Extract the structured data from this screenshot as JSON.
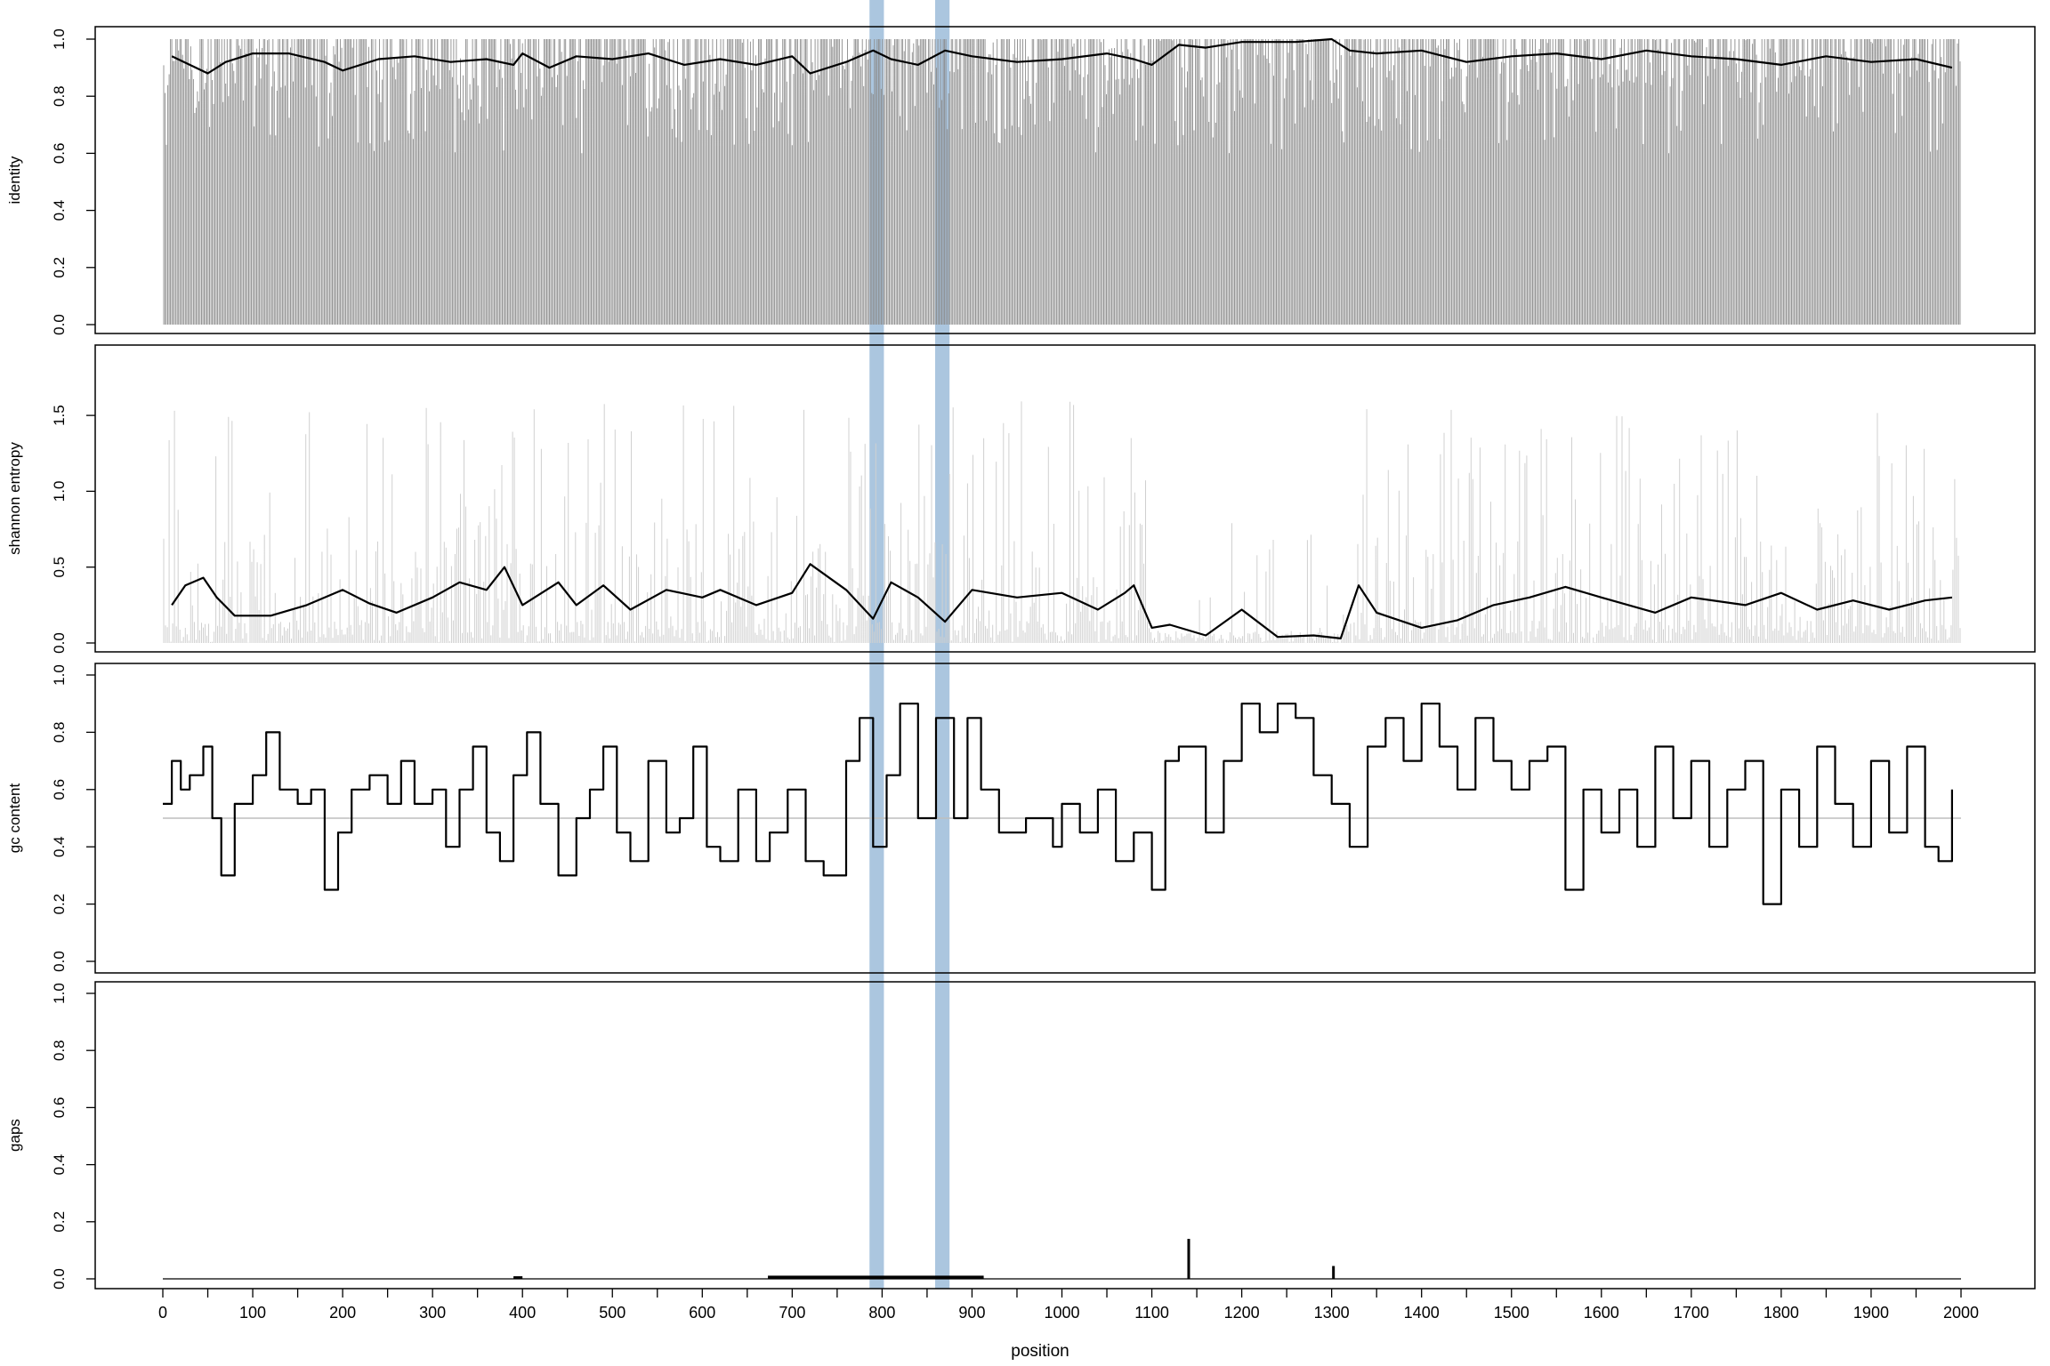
{
  "chart_data": {
    "type": "line",
    "xlabel": "position",
    "xlim": [
      0,
      2000
    ],
    "x_ticks": [
      0,
      100,
      200,
      300,
      400,
      500,
      600,
      700,
      800,
      900,
      1000,
      1100,
      1200,
      1300,
      1400,
      1500,
      1600,
      1700,
      1800,
      1900,
      2000
    ],
    "x_tick_labels": [
      "0",
      "100",
      "200",
      "300",
      "400",
      "500",
      "600",
      "700",
      "800",
      "900",
      "1000",
      "1100",
      "1200",
      "1300",
      "1400",
      "1500",
      "1600",
      "1700",
      "1800",
      "1900",
      "2000"
    ],
    "highlight_bands": [
      {
        "from": 786,
        "to": 802
      },
      {
        "from": 859,
        "to": 875
      }
    ],
    "colors": {
      "highlight": "#a6c3dd",
      "identity_bars": "#8c8c8c",
      "entropy_bars": "#d0d0d0",
      "smoothed_line": "#000000",
      "reference_line": "#bdbdbd"
    },
    "panels": [
      {
        "id": "identity",
        "ylabel": "identity",
        "ylim": [
          0,
          1
        ],
        "y_ticks": [
          0.0,
          0.2,
          0.4,
          0.6,
          0.8,
          1.0
        ],
        "y_tick_labels": [
          "0.0",
          "0.2",
          "0.4",
          "0.6",
          "0.8",
          "1.0"
        ],
        "raw_bars": "per-position identity (0–1)",
        "smoothed": {
          "x": [
            10,
            30,
            50,
            70,
            100,
            140,
            180,
            200,
            240,
            280,
            320,
            360,
            390,
            400,
            430,
            460,
            500,
            540,
            580,
            620,
            660,
            700,
            720,
            760,
            790,
            810,
            840,
            870,
            900,
            950,
            1000,
            1050,
            1080,
            1100,
            1130,
            1160,
            1200,
            1260,
            1300,
            1320,
            1350,
            1400,
            1450,
            1500,
            1550,
            1600,
            1650,
            1700,
            1750,
            1800,
            1850,
            1900,
            1950,
            1990
          ],
          "y": [
            0.94,
            0.91,
            0.88,
            0.92,
            0.95,
            0.95,
            0.92,
            0.89,
            0.93,
            0.94,
            0.92,
            0.93,
            0.91,
            0.95,
            0.9,
            0.94,
            0.93,
            0.95,
            0.91,
            0.93,
            0.91,
            0.94,
            0.88,
            0.92,
            0.96,
            0.93,
            0.91,
            0.96,
            0.94,
            0.92,
            0.93,
            0.95,
            0.93,
            0.91,
            0.98,
            0.97,
            0.99,
            0.99,
            1.0,
            0.96,
            0.95,
            0.96,
            0.92,
            0.94,
            0.95,
            0.93,
            0.96,
            0.94,
            0.93,
            0.91,
            0.94,
            0.92,
            0.93,
            0.9
          ]
        }
      },
      {
        "id": "entropy",
        "ylabel": "shannon entropy",
        "ylim": [
          0,
          1.7
        ],
        "y_ticks": [
          0.0,
          0.5,
          1.0,
          1.5
        ],
        "y_tick_labels": [
          "0.0",
          "0.5",
          "1.0",
          "1.5"
        ],
        "raw_bars": "per-position entropy (0–1.6)",
        "smoothed": {
          "x": [
            10,
            25,
            45,
            60,
            80,
            120,
            160,
            200,
            230,
            260,
            300,
            330,
            360,
            380,
            400,
            440,
            460,
            490,
            520,
            560,
            600,
            620,
            660,
            700,
            720,
            760,
            790,
            810,
            840,
            870,
            900,
            950,
            1000,
            1040,
            1070,
            1080,
            1100,
            1120,
            1160,
            1200,
            1240,
            1280,
            1310,
            1330,
            1350,
            1400,
            1440,
            1480,
            1520,
            1560,
            1600,
            1660,
            1700,
            1760,
            1800,
            1840,
            1880,
            1920,
            1960,
            1990
          ],
          "y": [
            0.25,
            0.38,
            0.43,
            0.3,
            0.18,
            0.18,
            0.25,
            0.35,
            0.26,
            0.2,
            0.3,
            0.4,
            0.35,
            0.5,
            0.25,
            0.4,
            0.25,
            0.38,
            0.22,
            0.35,
            0.3,
            0.35,
            0.25,
            0.33,
            0.52,
            0.35,
            0.16,
            0.4,
            0.3,
            0.14,
            0.35,
            0.3,
            0.33,
            0.22,
            0.33,
            0.38,
            0.1,
            0.12,
            0.05,
            0.22,
            0.04,
            0.05,
            0.03,
            0.38,
            0.2,
            0.1,
            0.15,
            0.25,
            0.3,
            0.37,
            0.3,
            0.2,
            0.3,
            0.25,
            0.33,
            0.22,
            0.28,
            0.22,
            0.28,
            0.3
          ]
        }
      },
      {
        "id": "gc",
        "ylabel": "gc content",
        "ylim": [
          0,
          1
        ],
        "y_ticks": [
          0.0,
          0.2,
          0.4,
          0.6,
          0.8,
          1.0
        ],
        "y_tick_labels": [
          "0.0",
          "0.2",
          "0.4",
          "0.6",
          "0.8",
          "1.0"
        ],
        "reference_line_y": 0.5,
        "smoothed": {
          "x": [
            0,
            10,
            20,
            30,
            45,
            55,
            65,
            80,
            100,
            115,
            130,
            150,
            165,
            180,
            195,
            210,
            230,
            250,
            265,
            280,
            300,
            315,
            330,
            345,
            360,
            375,
            390,
            405,
            420,
            440,
            460,
            475,
            490,
            505,
            520,
            540,
            560,
            575,
            590,
            605,
            620,
            640,
            660,
            675,
            695,
            715,
            735,
            760,
            775,
            790,
            805,
            820,
            840,
            860,
            880,
            895,
            910,
            930,
            960,
            990,
            1000,
            1020,
            1040,
            1060,
            1080,
            1100,
            1115,
            1130,
            1160,
            1180,
            1200,
            1220,
            1240,
            1260,
            1280,
            1300,
            1320,
            1340,
            1360,
            1380,
            1400,
            1420,
            1440,
            1460,
            1480,
            1500,
            1520,
            1540,
            1560,
            1580,
            1600,
            1620,
            1640,
            1660,
            1680,
            1700,
            1720,
            1740,
            1760,
            1780,
            1800,
            1820,
            1840,
            1860,
            1880,
            1900,
            1920,
            1940,
            1960,
            1975,
            1990
          ],
          "y": [
            0.55,
            0.7,
            0.6,
            0.65,
            0.75,
            0.5,
            0.3,
            0.55,
            0.65,
            0.8,
            0.6,
            0.55,
            0.6,
            0.25,
            0.45,
            0.6,
            0.65,
            0.55,
            0.7,
            0.55,
            0.6,
            0.4,
            0.6,
            0.75,
            0.45,
            0.35,
            0.65,
            0.8,
            0.55,
            0.3,
            0.5,
            0.6,
            0.75,
            0.45,
            0.35,
            0.7,
            0.45,
            0.5,
            0.75,
            0.4,
            0.35,
            0.6,
            0.35,
            0.45,
            0.6,
            0.35,
            0.3,
            0.7,
            0.85,
            0.4,
            0.65,
            0.9,
            0.5,
            0.85,
            0.5,
            0.85,
            0.6,
            0.45,
            0.5,
            0.4,
            0.55,
            0.45,
            0.6,
            0.35,
            0.45,
            0.25,
            0.7,
            0.75,
            0.45,
            0.7,
            0.9,
            0.8,
            0.9,
            0.85,
            0.65,
            0.55,
            0.4,
            0.75,
            0.85,
            0.7,
            0.9,
            0.75,
            0.6,
            0.85,
            0.7,
            0.6,
            0.7,
            0.75,
            0.25,
            0.6,
            0.45,
            0.6,
            0.4,
            0.75,
            0.5,
            0.7,
            0.4,
            0.6,
            0.7,
            0.2,
            0.6,
            0.4,
            0.75,
            0.55,
            0.4,
            0.7,
            0.45,
            0.75,
            0.4,
            0.35,
            0.6
          ]
        }
      },
      {
        "id": "gaps",
        "ylabel": "gaps",
        "ylim": [
          0,
          1
        ],
        "y_ticks": [
          0.0,
          0.2,
          0.4,
          0.6,
          0.8,
          1.0
        ],
        "y_tick_labels": [
          "0.0",
          "0.2",
          "0.4",
          "0.6",
          "0.8",
          "1.0"
        ],
        "baseline_y": 0,
        "segments": [
          {
            "from": 390,
            "to": 400,
            "y": 0.006
          },
          {
            "from": 673,
            "to": 913,
            "y": 0.008
          }
        ],
        "spikes": [
          {
            "x": 1141,
            "y": 0.14
          },
          {
            "x": 1302,
            "y": 0.045
          }
        ]
      }
    ]
  }
}
